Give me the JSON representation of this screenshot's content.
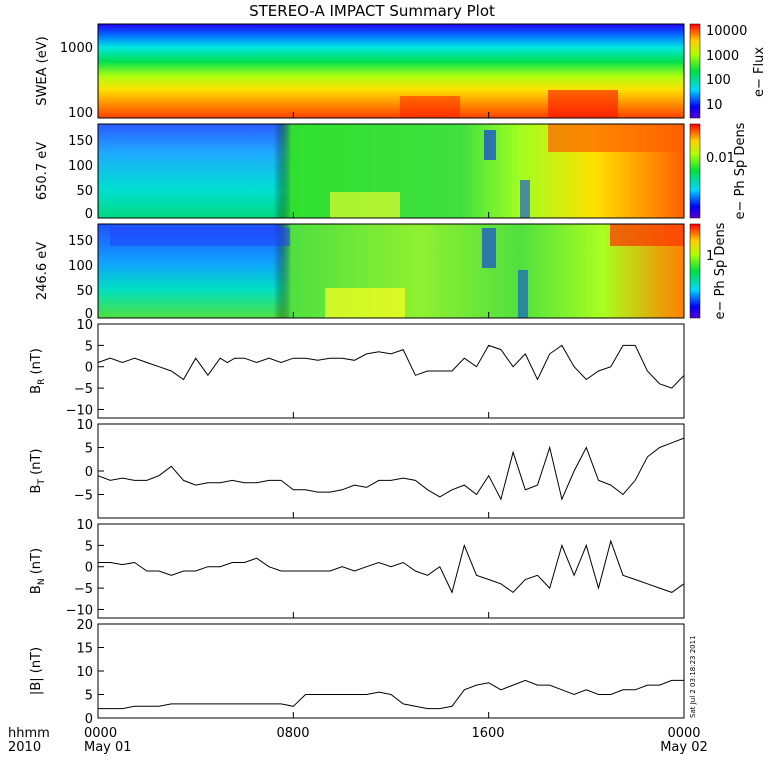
{
  "title": "STEREO-A IMPACT Summary Plot",
  "timestamp": "Sat Jul  2 03:18:23 2011",
  "x_axis": {
    "label_line1": "hhmm",
    "label_line2": "2010",
    "ticks": [
      {
        "time": "0000",
        "date": "May 01",
        "hour": 0
      },
      {
        "time": "0800",
        "date": "",
        "hour": 8
      },
      {
        "time": "1600",
        "date": "",
        "hour": 16
      },
      {
        "time": "0000",
        "date": "May 02",
        "hour": 24
      }
    ]
  },
  "chart_data": [
    {
      "type": "heatmap",
      "panel": "swea",
      "ylabel": "SWEA (eV)",
      "yscale": "log",
      "ylim": [
        90,
        2000
      ],
      "yticks": [
        "1000",
        "100"
      ],
      "colorbar": {
        "label": "e− Flux",
        "scale": "log",
        "ticks": [
          "10000",
          "1000",
          "100",
          "10"
        ]
      }
    },
    {
      "type": "heatmap",
      "panel": "pad650",
      "ylabel": "650.7 eV",
      "ylim": [
        0,
        180
      ],
      "yticks": [
        "150",
        "100",
        "50",
        "0"
      ],
      "colorbar": {
        "label": "e− Ph Sp Dens",
        "scale": "log",
        "ticks": [
          "0.01"
        ]
      }
    },
    {
      "type": "heatmap",
      "panel": "pad246",
      "ylabel": "246.6 eV",
      "ylim": [
        0,
        180
      ],
      "yticks": [
        "150",
        "100",
        "50",
        "0"
      ],
      "colorbar": {
        "label": "e− Ph Sp Dens",
        "scale": "log",
        "ticks": [
          "1"
        ]
      }
    },
    {
      "type": "line",
      "panel": "br",
      "ylabel": "B",
      "ylabel_sub": "R",
      "ylabel_unit": "(nT)",
      "ylim": [
        -12,
        10
      ],
      "yticks": [
        "10",
        "5",
        "0",
        "−5",
        "−10"
      ],
      "x_hours": [
        0,
        0.5,
        1,
        1.5,
        2,
        2.5,
        3,
        3.5,
        4,
        4.5,
        5,
        5.3,
        5.6,
        6,
        6.5,
        7,
        7.5,
        8,
        8.5,
        9,
        9.5,
        10,
        10.5,
        11,
        11.5,
        12,
        12.5,
        13,
        13.5,
        14,
        14.5,
        15,
        15.5,
        16,
        16.5,
        17,
        17.5,
        18,
        18.5,
        19,
        19.5,
        20,
        20.5,
        21,
        21.5,
        22,
        22.5,
        23,
        23.5,
        24
      ],
      "values": [
        1,
        2,
        1,
        2,
        1,
        0,
        -1,
        -3,
        2,
        -2,
        2,
        1,
        2,
        2,
        1,
        2,
        1,
        2,
        2,
        1.5,
        2,
        2,
        1.5,
        3,
        3.5,
        3,
        4,
        -2,
        -1,
        -1,
        -1,
        2,
        0,
        5,
        4,
        0,
        3,
        -3,
        3,
        5,
        0,
        -3,
        -1,
        0,
        5,
        5,
        -1,
        -4,
        -5,
        -2
      ]
    },
    {
      "type": "line",
      "panel": "bt",
      "ylabel": "B",
      "ylabel_sub": "T",
      "ylabel_unit": "(nT)",
      "ylim": [
        -10,
        10
      ],
      "yticks": [
        "10",
        "5",
        "0",
        "−5"
      ],
      "x_hours": [
        0,
        0.5,
        1,
        1.5,
        2,
        2.5,
        3,
        3.5,
        4,
        4.5,
        5,
        5.5,
        6,
        6.5,
        7,
        7.5,
        8,
        8.5,
        9,
        9.5,
        10,
        10.5,
        11,
        11.5,
        12,
        12.5,
        13,
        13.5,
        14,
        14.5,
        15,
        15.5,
        16,
        16.5,
        17,
        17.5,
        18,
        18.5,
        19,
        19.5,
        20,
        20.5,
        21,
        21.5,
        22,
        22.5,
        23,
        23.5,
        24
      ],
      "values": [
        -1,
        -2,
        -1.5,
        -2,
        -2,
        -1,
        1,
        -2,
        -3,
        -2.5,
        -2.5,
        -2,
        -2.5,
        -2.5,
        -2,
        -2,
        -4,
        -4,
        -4.5,
        -4.5,
        -4,
        -3,
        -3.5,
        -2,
        -2,
        -1.5,
        -2,
        -4,
        -5.5,
        -4,
        -3,
        -5,
        -1,
        -6,
        4,
        -4,
        -3,
        5,
        -6,
        0,
        5,
        -2,
        -3,
        -5,
        -2,
        3,
        5,
        6,
        7
      ]
    },
    {
      "type": "line",
      "panel": "bn",
      "ylabel": "B",
      "ylabel_sub": "N",
      "ylabel_unit": "(nT)",
      "ylim": [
        -12,
        10
      ],
      "yticks": [
        "10",
        "5",
        "0",
        "−5",
        "−10"
      ],
      "x_hours": [
        0,
        0.5,
        1,
        1.5,
        2,
        2.5,
        3,
        3.5,
        4,
        4.5,
        5,
        5.5,
        6,
        6.5,
        7,
        7.5,
        8,
        8.5,
        9,
        9.5,
        10,
        10.5,
        11,
        11.5,
        12,
        12.5,
        13,
        13.5,
        14,
        14.5,
        15,
        15.5,
        16,
        16.5,
        17,
        17.5,
        18,
        18.5,
        19,
        19.5,
        20,
        20.5,
        21,
        21.5,
        22,
        22.5,
        23,
        23.5,
        24
      ],
      "values": [
        1,
        1,
        0.5,
        1,
        -1,
        -1,
        -2,
        -1,
        -1,
        0,
        0,
        1,
        1,
        2,
        0,
        -1,
        -1,
        -1,
        -1,
        -1,
        0,
        -1,
        0,
        1,
        0,
        1,
        -1,
        -2,
        0,
        -6,
        5,
        -2,
        -3,
        -4,
        -6,
        -3,
        -2,
        -5,
        5,
        -2,
        5,
        -5,
        6,
        -2,
        -3,
        -4,
        -5,
        -6,
        -4
      ]
    },
    {
      "type": "line",
      "panel": "bmag",
      "ylabel": "|B| (nT)",
      "ylim": [
        0,
        20
      ],
      "yticks": [
        "20",
        "15",
        "10",
        "5",
        "0"
      ],
      "x_hours": [
        0,
        0.5,
        1,
        1.5,
        2,
        2.5,
        3,
        3.5,
        4,
        4.5,
        5,
        5.5,
        6,
        6.5,
        7,
        7.5,
        8,
        8.5,
        9,
        9.5,
        10,
        10.5,
        11,
        11.5,
        12,
        12.5,
        13,
        13.5,
        14,
        14.5,
        15,
        15.5,
        16,
        16.5,
        17,
        17.5,
        18,
        18.5,
        19,
        19.5,
        20,
        20.5,
        21,
        21.5,
        22,
        22.5,
        23,
        23.5,
        24
      ],
      "values": [
        2,
        2,
        2,
        2.5,
        2.5,
        2.5,
        3,
        3,
        3,
        3,
        3,
        3,
        3,
        3,
        3,
        3,
        2.5,
        5,
        5,
        5,
        5,
        5,
        5,
        5.5,
        5,
        3,
        2.5,
        2,
        2,
        2.5,
        6,
        7,
        7.5,
        6,
        7,
        8,
        7,
        7,
        6,
        5,
        6,
        5,
        5,
        6,
        6,
        7,
        7,
        8,
        8
      ]
    }
  ]
}
